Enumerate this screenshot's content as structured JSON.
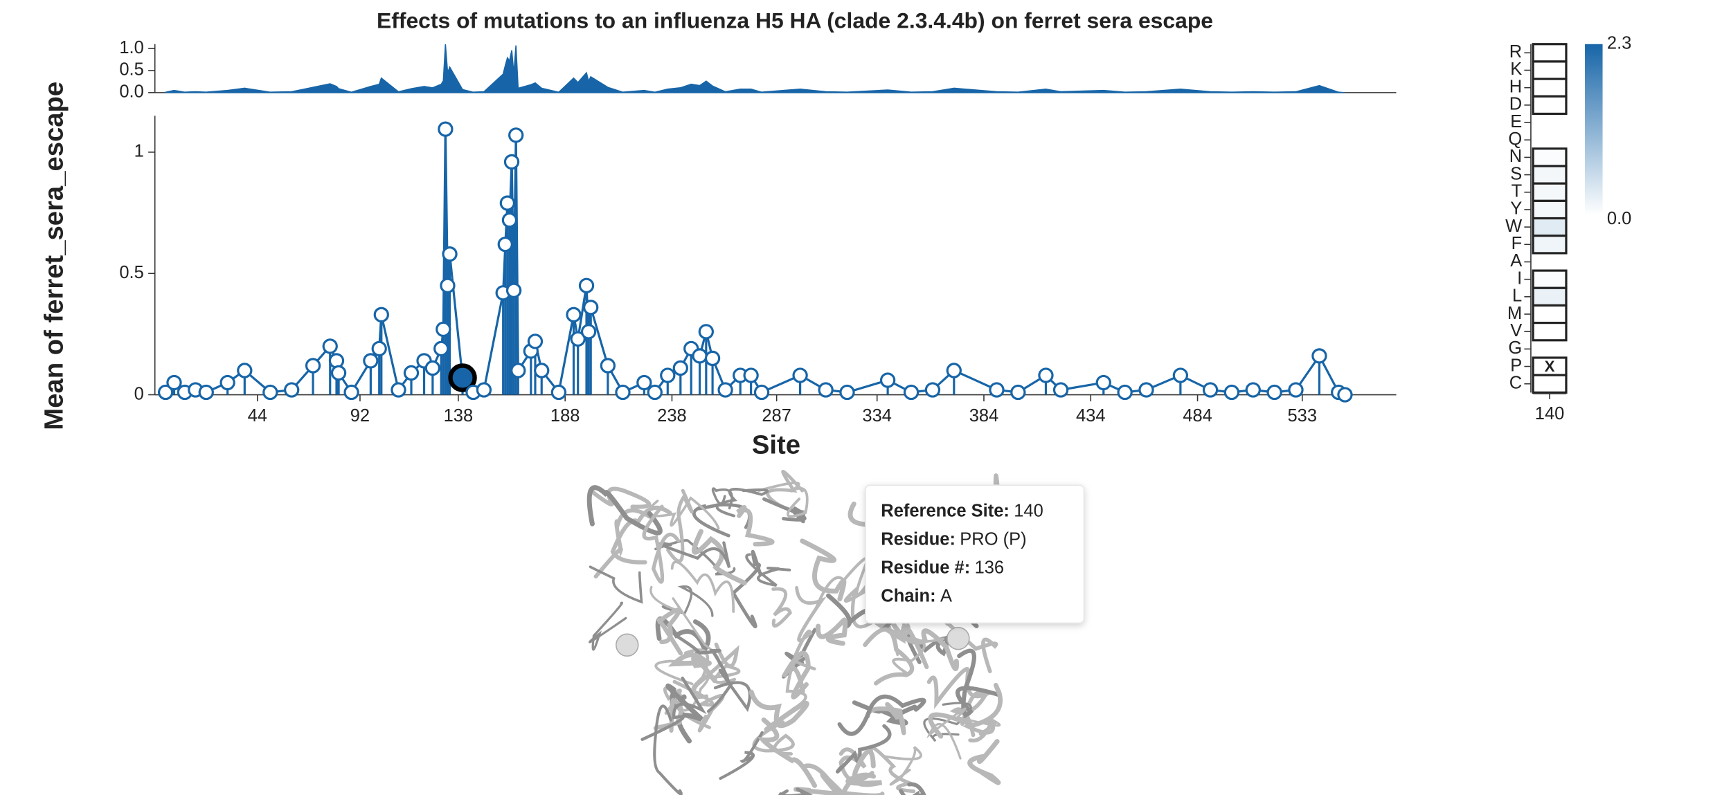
{
  "chart_data": [
    {
      "type": "lollipop",
      "title": "Effects of mutations to an influenza H5 HA (clade 2.3.4.4b) on ferret sera escape",
      "x_label": "Site",
      "y_label": "Mean of ferret_sera_escape",
      "color": "#1765a8",
      "x": [
        1,
        5,
        10,
        15,
        20,
        30,
        38,
        50,
        60,
        70,
        78,
        81,
        82,
        88,
        97,
        101,
        102,
        110,
        116,
        122,
        126,
        130,
        131,
        132,
        133,
        134,
        140,
        145,
        150,
        159,
        160,
        161,
        162,
        163,
        164,
        165,
        166,
        172,
        174,
        177,
        185,
        192,
        194,
        198,
        199,
        200,
        208,
        215,
        225,
        230,
        236,
        242,
        247,
        251,
        254,
        257,
        263,
        270,
        275,
        280,
        298,
        310,
        320,
        339,
        350,
        360,
        370,
        390,
        400,
        413,
        420,
        440,
        450,
        460,
        476,
        490,
        500,
        510,
        520,
        530,
        541,
        550,
        553
      ],
      "values": [
        0.01,
        0.05,
        0.01,
        0.02,
        0.01,
        0.05,
        0.1,
        0.01,
        0.02,
        0.12,
        0.2,
        0.14,
        0.09,
        0.01,
        0.14,
        0.19,
        0.33,
        0.02,
        0.09,
        0.14,
        0.11,
        0.19,
        0.27,
        1.095,
        0.45,
        0.58,
        0.07,
        0.01,
        0.02,
        0.42,
        0.62,
        0.79,
        0.72,
        0.96,
        0.43,
        1.07,
        0.1,
        0.18,
        0.22,
        0.1,
        0.01,
        0.33,
        0.23,
        0.45,
        0.26,
        0.36,
        0.12,
        0.01,
        0.05,
        0.01,
        0.08,
        0.11,
        0.19,
        0.16,
        0.26,
        0.15,
        0.02,
        0.08,
        0.08,
        0.01,
        0.08,
        0.02,
        0.01,
        0.06,
        0.01,
        0.02,
        0.1,
        0.02,
        0.01,
        0.08,
        0.02,
        0.05,
        0.01,
        0.02,
        0.08,
        0.02,
        0.01,
        0.02,
        0.01,
        0.02,
        0.16,
        0.01,
        0.0
      ],
      "selected": 140,
      "xlim": [
        -4,
        577
      ],
      "xticks": [
        44,
        92,
        138,
        188,
        238,
        287,
        334,
        384,
        434,
        484,
        533
      ],
      "ylim": [
        0,
        1.15
      ],
      "yticks": [
        0,
        0.5,
        1
      ]
    },
    {
      "type": "area",
      "ylim": [
        0,
        1.1
      ],
      "yticks": [
        {
          "value": 0,
          "label": "0.0"
        },
        {
          "value": 0.5,
          "label": "0.5"
        },
        {
          "value": 1,
          "label": "1.0"
        }
      ]
    },
    {
      "type": "heatmap",
      "rows": [
        "R",
        "K",
        "H",
        "D",
        "E",
        "Q",
        "N",
        "S",
        "T",
        "Y",
        "W",
        "F",
        "A",
        "I",
        "L",
        "M",
        "V",
        "G",
        "P",
        "C"
      ],
      "column": "140",
      "values": [
        0,
        0,
        0,
        0,
        null,
        null,
        0.05,
        0.12,
        0.1,
        0.1,
        0.3,
        0.15,
        null,
        0.05,
        0.2,
        0,
        0,
        null,
        0,
        0
      ],
      "wildtype": "P",
      "wildtype_marker": "X",
      "color_range": [
        "#ffffff",
        "#1765a8"
      ],
      "clim": [
        0,
        2.3
      ],
      "cticks": [
        {
          "value": 0,
          "label": "0.0"
        },
        {
          "value": 2.3,
          "label": "2.3"
        }
      ]
    }
  ],
  "tooltip": {
    "rows": [
      {
        "label": "Reference Site:",
        "value": "140"
      },
      {
        "label": "Residue:",
        "value": "PRO (P)"
      },
      {
        "label": "Residue #:",
        "value": "136"
      },
      {
        "label": "Chain:",
        "value": "A"
      }
    ]
  }
}
